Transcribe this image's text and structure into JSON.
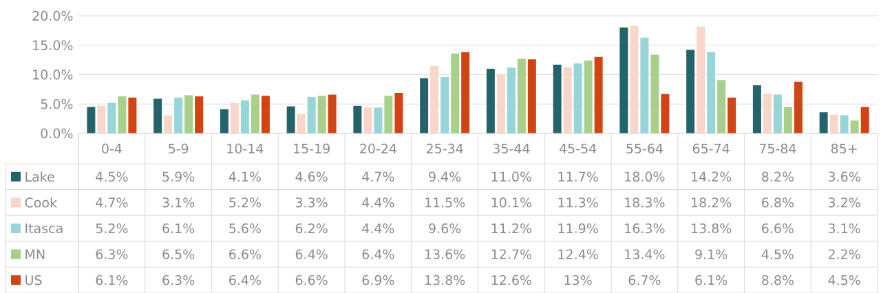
{
  "chart_data": {
    "type": "bar",
    "categories": [
      "0-4",
      "5-9",
      "10-14",
      "15-19",
      "20-24",
      "25-34",
      "35-44",
      "45-54",
      "55-64",
      "65-74",
      "75-84",
      "85+"
    ],
    "series": [
      {
        "name": "Lake",
        "color": "#23646a",
        "values": [
          4.5,
          5.9,
          4.1,
          4.6,
          4.7,
          9.4,
          11.0,
          11.7,
          18.0,
          14.2,
          8.2,
          3.6
        ],
        "value_labels": [
          "4.5%",
          "5.9%",
          "4.1%",
          "4.6%",
          "4.7%",
          "9.4%",
          "11.0%",
          "11.7%",
          "18.0%",
          "14.2%",
          "8.2%",
          "3.6%"
        ]
      },
      {
        "name": "Cook",
        "color": "#f9d5ca",
        "values": [
          4.7,
          3.1,
          5.2,
          3.3,
          4.4,
          11.5,
          10.1,
          11.3,
          18.3,
          18.2,
          6.8,
          3.2
        ],
        "value_labels": [
          "4.7%",
          "3.1%",
          "5.2%",
          "3.3%",
          "4.4%",
          "11.5%",
          "10.1%",
          "11.3%",
          "18.3%",
          "18.2%",
          "6.8%",
          "3.2%"
        ]
      },
      {
        "name": "Itasca",
        "color": "#97d5d8",
        "values": [
          5.2,
          6.1,
          5.6,
          6.2,
          4.4,
          9.6,
          11.2,
          11.9,
          16.3,
          13.8,
          6.6,
          3.1
        ],
        "value_labels": [
          "5.2%",
          "6.1%",
          "5.6%",
          "6.2%",
          "4.4%",
          "9.6%",
          "11.2%",
          "11.9%",
          "16.3%",
          "13.8%",
          "6.6%",
          "3.1%"
        ]
      },
      {
        "name": "MN",
        "color": "#a8d08a",
        "values": [
          6.3,
          6.5,
          6.6,
          6.4,
          6.4,
          13.6,
          12.7,
          12.4,
          13.4,
          9.1,
          4.5,
          2.2
        ],
        "value_labels": [
          "6.3%",
          "6.5%",
          "6.6%",
          "6.4%",
          "6.4%",
          "13.6%",
          "12.7%",
          "12.4%",
          "13.4%",
          "9.1%",
          "4.5%",
          "2.2%"
        ]
      },
      {
        "name": "US",
        "color": "#d14515",
        "values": [
          6.1,
          6.3,
          6.4,
          6.6,
          6.9,
          13.8,
          12.6,
          13,
          6.7,
          6.1,
          8.8,
          4.5
        ],
        "value_labels": [
          "6.1%",
          "6.3%",
          "6.4%",
          "6.6%",
          "6.9%",
          "13.8%",
          "12.6%",
          "13%",
          "6.7%",
          "6.1%",
          "8.8%",
          "4.5%"
        ]
      }
    ],
    "ylim": [
      0,
      20
    ],
    "yticks": [
      {
        "value": 0,
        "label": "0.0%"
      },
      {
        "value": 5,
        "label": "5.0%"
      },
      {
        "value": 10,
        "label": "10.0%"
      },
      {
        "value": 15,
        "label": "15.0%"
      },
      {
        "value": 20,
        "label": "20.0%"
      }
    ],
    "grid": "y",
    "legend": "bottom left"
  }
}
